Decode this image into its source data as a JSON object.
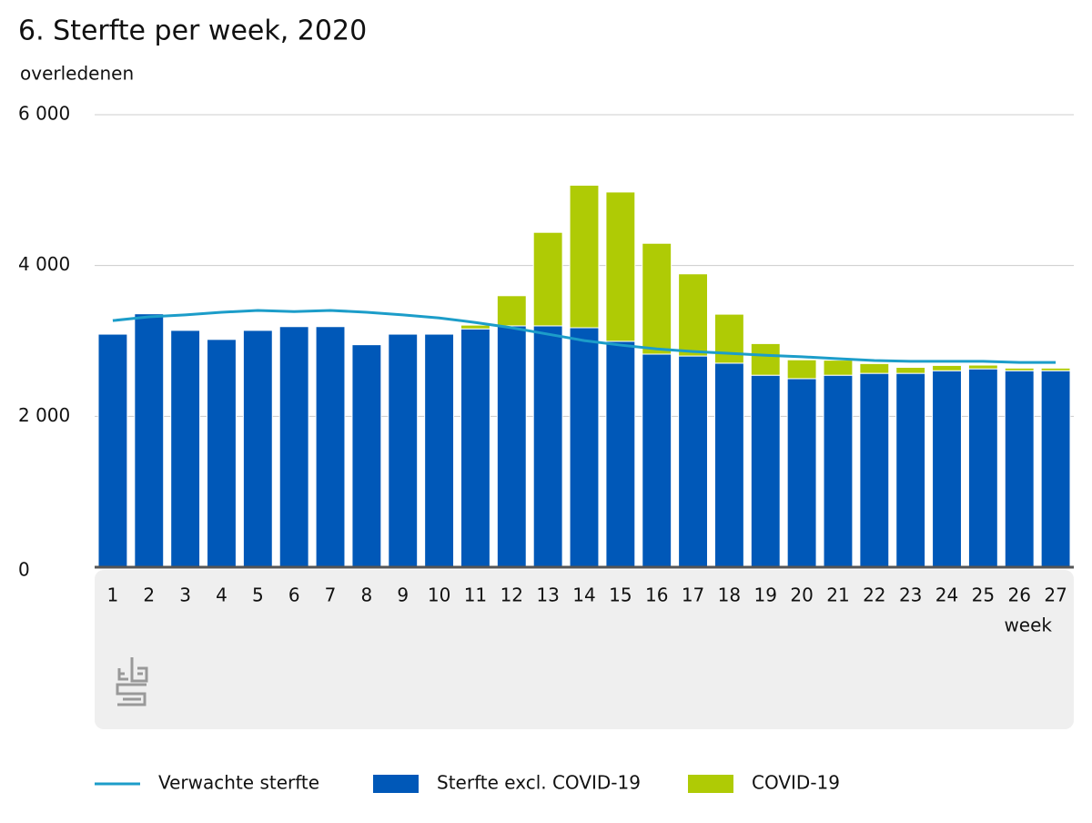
{
  "chart_data": {
    "type": "bar",
    "title": "6. Sterfte per week, 2020",
    "y_label": "overledenen",
    "x_label": "week",
    "categories": [
      "1",
      "2",
      "3",
      "4",
      "5",
      "6",
      "7",
      "8",
      "9",
      "10",
      "11",
      "12",
      "13",
      "14",
      "15",
      "16",
      "17",
      "18",
      "19",
      "20",
      "21",
      "22",
      "23",
      "24",
      "25",
      "26",
      "27"
    ],
    "series": [
      {
        "name": "Sterfte excl. COVID-19",
        "type": "bar",
        "color": "#0058b8",
        "values": [
          3090,
          3360,
          3140,
          3020,
          3140,
          3190,
          3190,
          2950,
          3090,
          3090,
          3160,
          3200,
          3200,
          3175,
          2995,
          2825,
          2800,
          2705,
          2545,
          2500,
          2545,
          2570,
          2570,
          2605,
          2630,
          2605,
          2605
        ]
      },
      {
        "name": "COVID-19",
        "type": "bar",
        "color": "#afcb05",
        "values": [
          0,
          0,
          0,
          0,
          0,
          0,
          0,
          0,
          0,
          0,
          50,
          400,
          1240,
          1890,
          1980,
          1470,
          1090,
          650,
          420,
          250,
          200,
          130,
          80,
          70,
          50,
          35,
          35
        ]
      },
      {
        "name": "Verwachte sterfte",
        "type": "line",
        "color": "#1c9dc9",
        "values": [
          3270,
          3320,
          3345,
          3380,
          3405,
          3390,
          3405,
          3380,
          3345,
          3305,
          3245,
          3175,
          3090,
          3005,
          2945,
          2895,
          2860,
          2835,
          2810,
          2790,
          2765,
          2740,
          2730,
          2730,
          2730,
          2715,
          2715
        ]
      }
    ],
    "ylim": [
      0,
      6000
    ],
    "yticks": [
      0,
      {
        "value": 2000,
        "label": "2 000"
      },
      {
        "value": 4000,
        "label": "4 000"
      },
      {
        "value": 6000,
        "label": "6 000"
      }
    ],
    "grid": true,
    "legend": "bottom"
  }
}
